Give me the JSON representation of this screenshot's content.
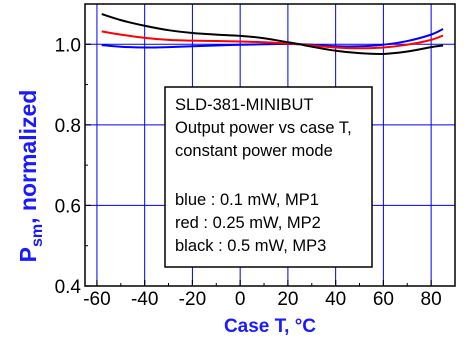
{
  "chart_data": {
    "type": "line",
    "title": "",
    "xlabel": "Case T, °C",
    "ylabel": {
      "main": "P",
      "sub": "sm",
      "rest": ", normalized"
    },
    "xlim": [
      -65,
      90
    ],
    "ylim": [
      0.4,
      1.1
    ],
    "x_ticks": [
      -60,
      -40,
      -20,
      0,
      20,
      40,
      60,
      80
    ],
    "x_tick_labels": [
      "-60",
      "-40",
      "-20",
      "0",
      "20",
      "40",
      "60",
      "80"
    ],
    "y_ticks": [
      0.4,
      0.6,
      0.8,
      1.0
    ],
    "y_tick_labels": [
      "0.4",
      "0.6",
      "0.8",
      "1.0"
    ],
    "grid": true,
    "grid_color": "#0000ee",
    "series": [
      {
        "color": "#0000ff",
        "x": [
          -58,
          -50,
          -40,
          -30,
          -20,
          -10,
          0,
          10,
          20,
          25,
          30,
          40,
          50,
          60,
          70,
          80,
          85
        ],
        "y": [
          0.998,
          0.994,
          0.992,
          0.993,
          0.995,
          0.997,
          0.999,
          1.0,
          1.001,
          1.0,
          0.999,
          0.995,
          0.995,
          0.999,
          1.008,
          1.024,
          1.038
        ]
      },
      {
        "color": "#ff0000",
        "x": [
          -58,
          -50,
          -40,
          -30,
          -20,
          -10,
          0,
          10,
          20,
          25,
          30,
          40,
          50,
          60,
          70,
          80,
          85
        ],
        "y": [
          1.032,
          1.024,
          1.016,
          1.011,
          1.009,
          1.008,
          1.007,
          1.005,
          1.002,
          1.0,
          0.997,
          0.992,
          0.99,
          0.992,
          0.999,
          1.011,
          1.022
        ]
      },
      {
        "color": "#000000",
        "x": [
          -58,
          -50,
          -40,
          -30,
          -20,
          -10,
          0,
          10,
          20,
          25,
          30,
          40,
          50,
          60,
          70,
          80,
          85
        ],
        "y": [
          1.075,
          1.06,
          1.046,
          1.035,
          1.028,
          1.024,
          1.021,
          1.015,
          1.005,
          1.0,
          0.994,
          0.984,
          0.978,
          0.976,
          0.982,
          0.993,
          0.997
        ]
      }
    ],
    "annotation_lines": [
      "SLD-381-MINIBUT",
      "Output power vs case T,",
      "constant power mode",
      "",
      "blue : 0.1 mW, MP1",
      "red : 0.25 mW, MP2",
      "black : 0.5 mW, MP3"
    ]
  }
}
